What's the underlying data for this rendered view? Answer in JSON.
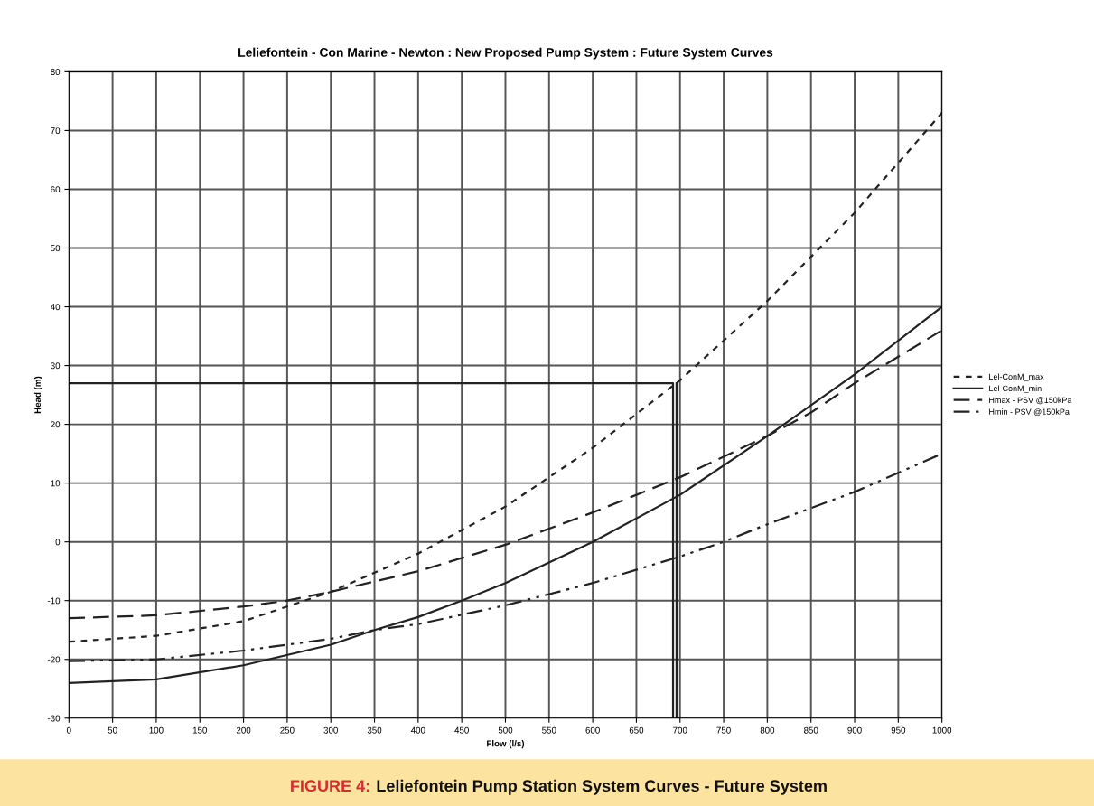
{
  "chart_data": {
    "type": "line",
    "title": "Leliefontein - Con Marine - Newton : New Proposed Pump System : Future System Curves",
    "xlabel": "Flow (l/s)",
    "ylabel": "Head (m)",
    "xlim": [
      0,
      1000
    ],
    "xticks": [
      0,
      50,
      100,
      150,
      200,
      250,
      300,
      350,
      400,
      450,
      500,
      550,
      600,
      650,
      700,
      750,
      800,
      850,
      900,
      950,
      1000
    ],
    "ylim": [
      -30,
      80
    ],
    "yticks": [
      -30,
      -20,
      -10,
      0,
      10,
      20,
      30,
      40,
      50,
      60,
      70,
      80
    ],
    "grid": true,
    "legend": "right",
    "marker": "none",
    "series": [
      {
        "name": "Lel-ConM_max",
        "color": "#222222",
        "line_style": "dotted",
        "x": [
          0,
          100,
          200,
          300,
          400,
          450,
          500,
          600,
          700,
          800,
          900,
          1000
        ],
        "values": [
          -17,
          -16,
          -13.5,
          -8.5,
          -2,
          2,
          6,
          16,
          27.5,
          41,
          56,
          73
        ]
      },
      {
        "name": "Lel-ConM_min",
        "color": "#222222",
        "line_style": "solid",
        "x": [
          0,
          100,
          200,
          300,
          350,
          400,
          450,
          500,
          600,
          700,
          800,
          900,
          1000
        ],
        "values": [
          -24,
          -23.4,
          -21,
          -17.5,
          -15,
          -12.8,
          -10,
          -7,
          0,
          8,
          18,
          28.5,
          40
        ]
      },
      {
        "name": "Hmax - PSV @150kPa",
        "color": "#222222",
        "line_style": "dashed",
        "x": [
          0,
          100,
          200,
          250,
          300,
          400,
          500,
          600,
          700,
          800,
          850,
          900,
          1000
        ],
        "values": [
          -13,
          -12.5,
          -11,
          -10,
          -8.5,
          -5,
          -0.5,
          5,
          11,
          18,
          22,
          27,
          36
        ]
      },
      {
        "name": "Hmin - PSV @150kPa",
        "color": "#222222",
        "line_style": "dashdot",
        "x": [
          0,
          100,
          200,
          300,
          350,
          400,
          500,
          600,
          700,
          750,
          800,
          900,
          1000
        ],
        "values": [
          -20.3,
          -20,
          -18.5,
          -16.5,
          -15,
          -14,
          -10.8,
          -7,
          -2.5,
          0,
          3,
          8.5,
          15
        ]
      },
      {
        "color": "#222222",
        "line_style": "solid",
        "x": [
          0,
          692,
          692
        ],
        "values": [
          27,
          27,
          -30
        ]
      },
      {
        "color": "#222222",
        "line_style": "solid",
        "x": [
          696,
          696
        ],
        "values": [
          27,
          -30
        ]
      }
    ],
    "annotations": [
      "FIGURE 4:",
      "Leliefontein Pump Station System Curves - Future System"
    ]
  }
}
